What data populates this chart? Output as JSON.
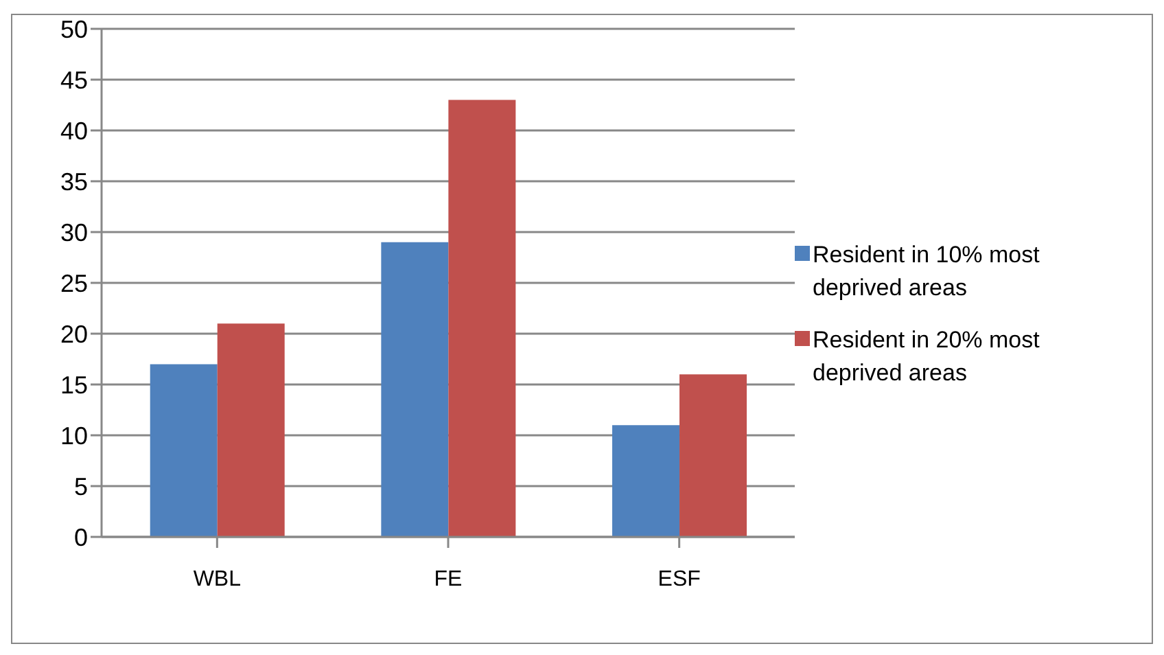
{
  "chart_data": {
    "type": "bar",
    "categories": [
      "WBL",
      "FE",
      "ESF"
    ],
    "series": [
      {
        "name": "Resident in 10% most deprived areas",
        "color": "#4f81bd",
        "values": [
          17,
          29,
          11
        ]
      },
      {
        "name": "Resident in 20% most deprived areas",
        "color": "#c0504d",
        "values": [
          21,
          43,
          16
        ]
      }
    ],
    "ylim": [
      0,
      50
    ],
    "yticks": [
      0,
      5,
      10,
      15,
      20,
      25,
      30,
      35,
      40,
      45,
      50
    ],
    "grid": "y",
    "legend": "right"
  }
}
